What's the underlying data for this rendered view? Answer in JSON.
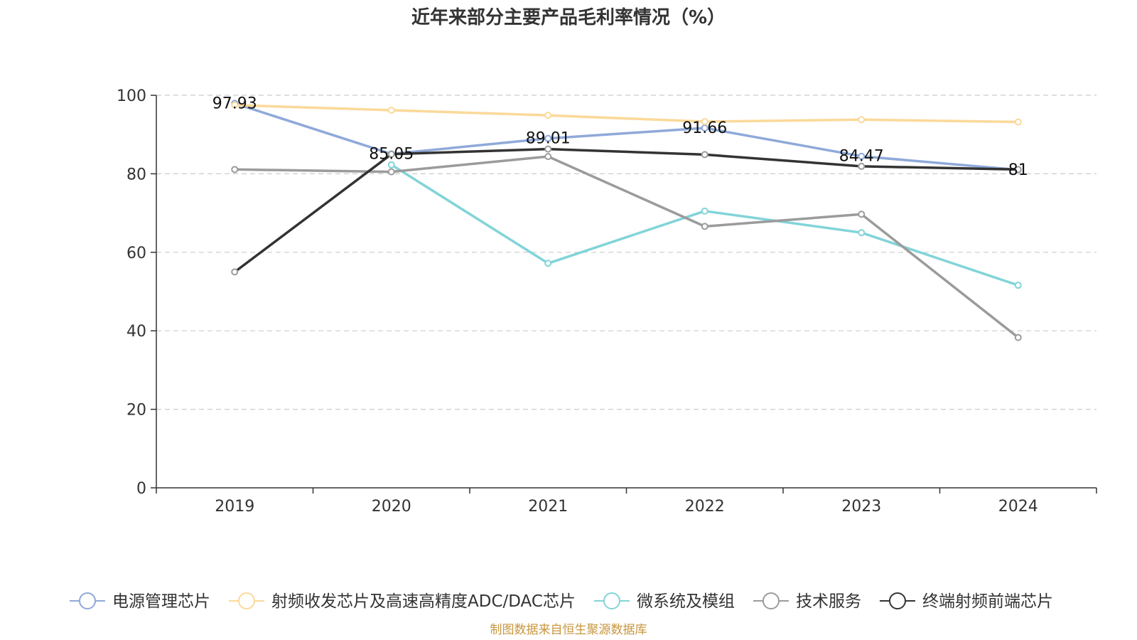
{
  "chart_data": {
    "type": "line",
    "title": "近年来部分主要产品毛利率情况（%）",
    "categories": [
      "2019",
      "2020",
      "2021",
      "2022",
      "2023",
      "2024"
    ],
    "ylim": [
      0,
      100
    ],
    "yticks": [
      "0",
      "20",
      "40",
      "60",
      "80",
      "100"
    ],
    "grid": true,
    "legend_position": "bottom",
    "series": [
      {
        "name": "电源管理芯片",
        "color": "#8fa9d9",
        "values": [
          97.93,
          85.05,
          89.01,
          91.66,
          84.47,
          81
        ],
        "labels": [
          "97.93",
          "85.05",
          "89.01",
          "91.66",
          "84.47",
          "81"
        ]
      },
      {
        "name": "射频收发芯片及高速高精度ADC/DAC芯片",
        "color": "#fbd99a",
        "values": [
          97.5,
          96.2,
          94.9,
          93.3,
          93.8,
          93.2
        ]
      },
      {
        "name": "微系统及模组",
        "color": "#82d4d8",
        "values": [
          null,
          82.3,
          57.2,
          70.5,
          65.0,
          51.6
        ]
      },
      {
        "name": "技术服务",
        "color": "#9b9b9b",
        "values": [
          81.1,
          80.5,
          84.4,
          66.6,
          69.7,
          38.3
        ]
      },
      {
        "name": "终端射频前端芯片",
        "color": "#333333",
        "marker_color": "#9b9b9b",
        "values": [
          55.0,
          85.0,
          86.3,
          84.9,
          81.9,
          81.1
        ]
      }
    ],
    "source_note": "制图数据来自恒生聚源数据库"
  }
}
